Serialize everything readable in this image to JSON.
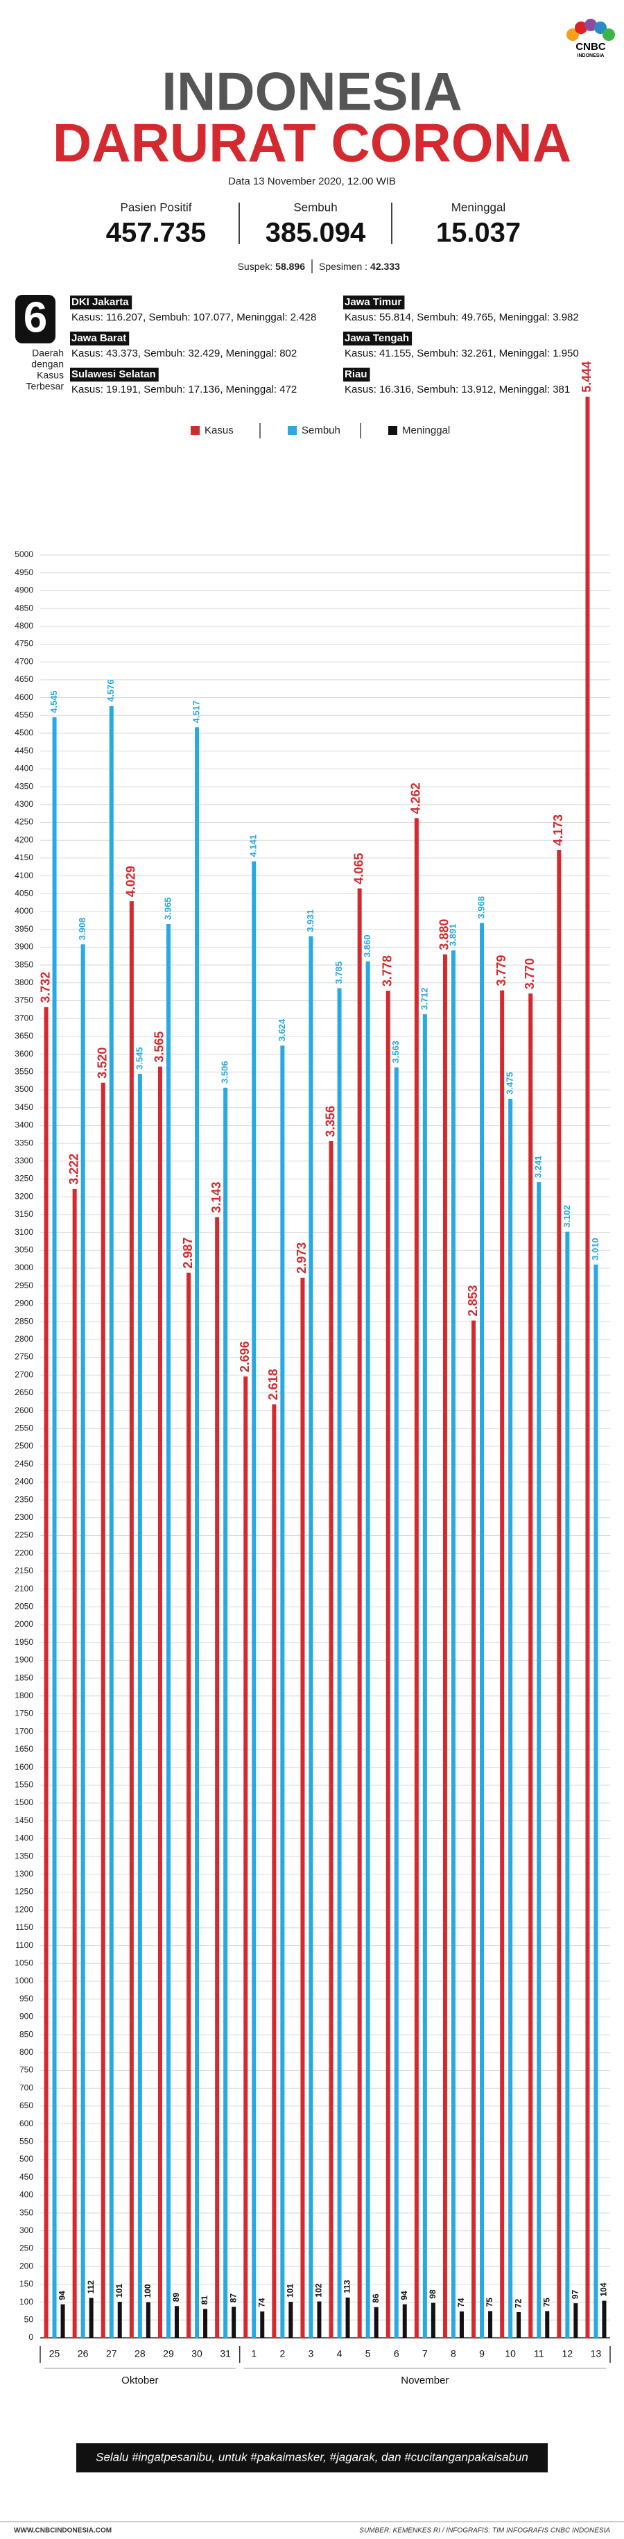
{
  "header": {
    "logo": [
      "CNBC",
      "INDONESIA"
    ],
    "title_line1": "INDONESIA",
    "title_line2": "DARURAT CORONA",
    "date": "Data 13 November 2020, 12.00 WIB",
    "stats": [
      {
        "label": "Pasien Positif",
        "value": "457.735"
      },
      {
        "label": "Sembuh",
        "value": "385.094"
      },
      {
        "label": "Meninggal",
        "value": "15.037"
      }
    ],
    "extra": [
      {
        "label": "Suspek:",
        "value": "58.896"
      },
      {
        "label": "Spesimen :",
        "value": "42.333"
      }
    ]
  },
  "regions": {
    "count": "6",
    "caption": [
      "Daerah",
      "dengan",
      "Kasus",
      "Terbesar"
    ],
    "items": [
      {
        "name": "DKI Jakarta",
        "stats": "Kasus: 116.207, Sembuh: 107.077, Meninggal: 2.428"
      },
      {
        "name": "Jawa Timur",
        "stats": "Kasus: 55.814, Sembuh: 49.765, Meninggal: 3.982"
      },
      {
        "name": "Jawa Barat",
        "stats": "Kasus: 43.373, Sembuh: 32.429, Meninggal: 802"
      },
      {
        "name": "Jawa Tengah",
        "stats": "Kasus: 41.155, Sembuh: 32.261, Meninggal: 1.950"
      },
      {
        "name": "Sulawesi Selatan",
        "stats": "Kasus: 19.191, Sembuh: 17.136, Meninggal: 472"
      },
      {
        "name": "Riau",
        "stats": "Kasus: 16.316, Sembuh: 13.912, Meninggal: 381"
      }
    ]
  },
  "chart_data": {
    "type": "bar",
    "grid": true,
    "categories": [
      "25",
      "26",
      "27",
      "28",
      "29",
      "30",
      "31",
      "1",
      "2",
      "3",
      "4",
      "5",
      "6",
      "7",
      "8",
      "9",
      "10",
      "11",
      "12",
      "13"
    ],
    "groups": [
      {
        "label": "Oktober",
        "from": "25",
        "to": "31"
      },
      {
        "label": "November",
        "from": "1",
        "to": "13"
      }
    ],
    "series": [
      {
        "name": "Kasus",
        "color": "#d42a2f",
        "values": [
          3732,
          3222,
          3520,
          4029,
          3565,
          2987,
          3143,
          2696,
          2618,
          2973,
          3356,
          4065,
          3778,
          4262,
          3880,
          2853,
          3779,
          3770,
          4173,
          5444
        ],
        "value_labels": [
          "3.732",
          "3.222",
          "3.520",
          "4.029",
          "3.565",
          "2.987",
          "3.143",
          "2.696",
          "2.618",
          "2.973",
          "3.356",
          "4.065",
          "3.778",
          "4.262",
          "3.880",
          "2.853",
          "3.779",
          "3.770",
          "4.173",
          "5.444"
        ]
      },
      {
        "name": "Sembuh",
        "color": "#27a9e1",
        "values": [
          4545,
          3908,
          4576,
          3545,
          3965,
          4517,
          3506,
          4141,
          3624,
          3931,
          3785,
          3860,
          3563,
          3712,
          3891,
          3968,
          3475,
          3241,
          3102,
          3010
        ],
        "value_labels": [
          "4.545",
          "3.908",
          "4.576",
          "3.545",
          "3.965",
          "4.517",
          "3.506",
          "4.141",
          "3.624",
          "3.931",
          "3.785",
          "3.860",
          "3.563",
          "3.712",
          "3.891",
          "3.968",
          "3.475",
          "3.241",
          "3.102",
          "3.010"
        ]
      },
      {
        "name": "Meninggal",
        "color": "#111111",
        "values": [
          94,
          112,
          101,
          100,
          89,
          81,
          87,
          74,
          101,
          102,
          113,
          86,
          94,
          98,
          74,
          75,
          72,
          75,
          97,
          104
        ]
      }
    ],
    "ylim": [
      0,
      5000
    ],
    "yticks": [
      0,
      50,
      100,
      150,
      200,
      250,
      300,
      350,
      400,
      450,
      500,
      550,
      600,
      650,
      700,
      750,
      800,
      850,
      900,
      950,
      1000,
      1050,
      1100,
      1150,
      1200,
      1250,
      1300,
      1350,
      1400,
      1450,
      1500,
      1550,
      1600,
      1650,
      1700,
      1750,
      1800,
      1850,
      1900,
      1950,
      2000,
      2050,
      2100,
      2150,
      2200,
      2250,
      2300,
      2350,
      2400,
      2450,
      2500,
      2550,
      2600,
      2650,
      2700,
      2750,
      2800,
      2850,
      2900,
      2950,
      3000,
      3050,
      3100,
      3150,
      3200,
      3250,
      3300,
      3350,
      3400,
      3450,
      3500,
      3550,
      3600,
      3650,
      3700,
      3750,
      3800,
      3850,
      3900,
      3950,
      4000,
      4050,
      4100,
      4150,
      4200,
      4250,
      4300,
      4350,
      4400,
      4450,
      4500,
      4550,
      4600,
      4650,
      4700,
      4750,
      4800,
      4850,
      4900,
      4950,
      5000
    ]
  },
  "footer": {
    "slogan": "Selalu #ingatpesanibu, untuk #pakaimasker, #jagarak, dan #cucitanganpakaisabun",
    "site": "WWW.CNBCINDONESIA.COM",
    "source": "SUMBER: KEMENKES RI / INFOGRAFIS: TIM INFOGRAFIS CNBC INDONESIA"
  }
}
